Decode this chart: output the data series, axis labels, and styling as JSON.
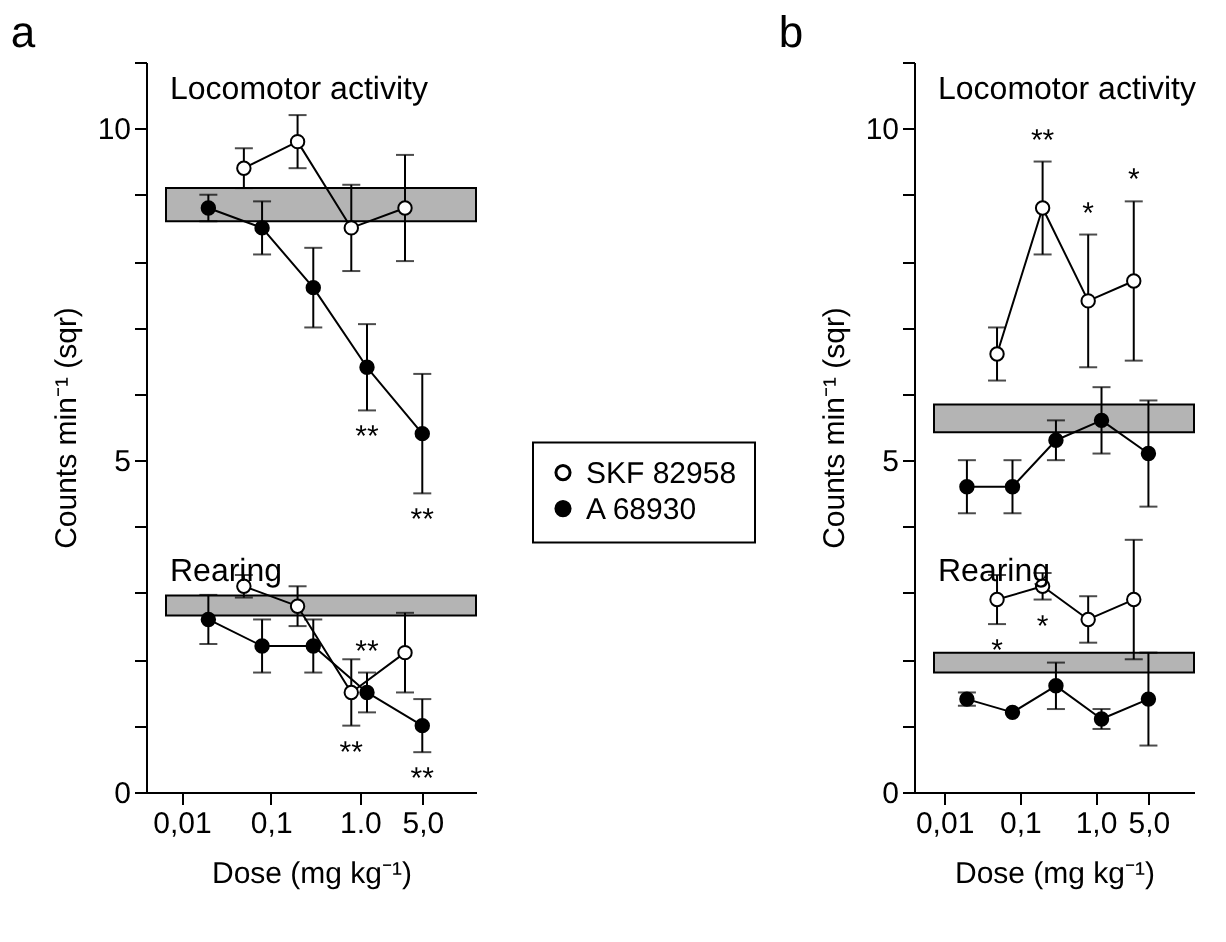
{
  "chart_data": [
    {
      "type": "line",
      "title": "a",
      "xlabel": "Dose (mg kg⁻¹)",
      "ylabel": "Counts min⁻¹ (sqr)",
      "log": "x",
      "grid": false,
      "legend": "right",
      "marker": "circle",
      "line_style": "solid",
      "xlim": [
        0.004,
        20
      ],
      "xticks": [
        {
          "value": 0.01,
          "label": "0,01"
        },
        {
          "value": 0.1,
          "label": "0,1"
        },
        {
          "value": 1,
          "label": "1.0"
        },
        {
          "value": 5,
          "label": "5,0"
        }
      ],
      "ylim": [
        0,
        11
      ],
      "yticks": [
        0,
        {
          "value": 1,
          "label": null
        },
        {
          "value": 2,
          "label": null
        },
        {
          "value": 3,
          "label": null
        },
        {
          "value": 4,
          "label": null
        },
        5,
        {
          "value": 6,
          "label": null
        },
        {
          "value": 7,
          "label": null
        },
        {
          "value": 8,
          "label": null
        },
        {
          "value": 9,
          "label": null
        },
        10,
        {
          "value": 11,
          "label": null
        }
      ],
      "series": [
        {
          "name": "SKF 82958",
          "color": "#ffffff",
          "x": [
            0.05,
            0.2,
            0.8,
            3.2
          ],
          "values": [
            9.4,
            9.8,
            8.5,
            8.8
          ],
          "errors": [
            0.3,
            0.4,
            0.65,
            0.8
          ]
        },
        {
          "name": "A 68930",
          "color": "#000000",
          "x": [
            0.02,
            0.08,
            0.3,
            1.2,
            5
          ],
          "values": [
            8.8,
            8.5,
            7.6,
            6.4,
            5.4
          ],
          "errors": [
            0.2,
            0.4,
            0.6,
            0.65,
            0.9
          ]
        },
        {
          "color": "#ffffff",
          "x": [
            0.05,
            0.2,
            0.8,
            3.2
          ],
          "values": [
            3.1,
            2.8,
            1.5,
            2.1
          ],
          "errors": [
            0.17,
            0.3,
            0.5,
            0.6
          ]
        },
        {
          "color": "#000000",
          "x": [
            0.02,
            0.08,
            0.3,
            1.2,
            5
          ],
          "values": [
            2.6,
            2.2,
            2.2,
            1.5,
            1.0
          ],
          "errors": [
            0.37,
            0.4,
            0.4,
            0.3,
            0.4
          ]
        }
      ],
      "bands": [
        {
          "axis": "y",
          "from": 8.6,
          "to": 9.1,
          "color": "#b4b4b4"
        },
        {
          "axis": "y",
          "from": 2.66,
          "to": 2.96,
          "color": "#b4b4b4"
        }
      ],
      "annotations": [
        "Locomotor activity",
        "Rearing",
        {
          "text": "**",
          "x": 1.2,
          "y": 5.75
        },
        {
          "text": "**",
          "x": 5,
          "y": 4.5
        },
        {
          "text": "**",
          "x": 1.2,
          "y": 1.8
        },
        {
          "text": "**",
          "x": 0.8,
          "y": 1.0
        },
        {
          "text": "**",
          "x": 5,
          "y": 0.6
        }
      ]
    },
    {
      "type": "line",
      "title": "b",
      "xlabel": "Dose (mg kg⁻¹)",
      "ylabel": "Counts min⁻¹ (sqr)",
      "log": "x",
      "grid": false,
      "marker": "circle",
      "line_style": "solid",
      "xlim": [
        0.004,
        20
      ],
      "xticks": [
        {
          "value": 0.01,
          "label": "0,01"
        },
        {
          "value": 0.1,
          "label": "0,1"
        },
        {
          "value": 1,
          "label": "1,0"
        },
        {
          "value": 5,
          "label": "5,0"
        }
      ],
      "ylim": [
        0,
        11
      ],
      "yticks": [
        0,
        {
          "value": 1,
          "label": null
        },
        {
          "value": 2,
          "label": null
        },
        {
          "value": 3,
          "label": null
        },
        {
          "value": 4,
          "label": null
        },
        5,
        {
          "value": 6,
          "label": null
        },
        {
          "value": 7,
          "label": null
        },
        {
          "value": 8,
          "label": null
        },
        {
          "value": 9,
          "label": null
        },
        10,
        {
          "value": 11,
          "label": null
        }
      ],
      "series": [
        {
          "color": "#ffffff",
          "x": [
            0.05,
            0.2,
            0.8,
            3.2
          ],
          "values": [
            6.6,
            8.8,
            7.4,
            7.7
          ],
          "errors": [
            0.4,
            0.7,
            1.0,
            1.2
          ]
        },
        {
          "color": "#000000",
          "x": [
            0.02,
            0.08,
            0.3,
            1.2,
            5
          ],
          "values": [
            4.6,
            4.6,
            5.3,
            5.6,
            5.1
          ],
          "errors": [
            0.4,
            0.4,
            0.3,
            0.5,
            0.8
          ]
        },
        {
          "color": "#ffffff",
          "x": [
            0.05,
            0.2,
            0.8,
            3.2
          ],
          "values": [
            2.9,
            3.1,
            2.6,
            2.9
          ],
          "errors": [
            0.37,
            0.2,
            0.35,
            0.9
          ]
        },
        {
          "color": "#000000",
          "x": [
            0.02,
            0.08,
            0.3,
            1.2,
            5
          ],
          "values": [
            1.4,
            1.2,
            1.6,
            1.1,
            1.4
          ],
          "errors": [
            0.1,
            null,
            0.35,
            0.15,
            0.7
          ]
        }
      ],
      "bands": [
        {
          "axis": "y",
          "from": 5.42,
          "to": 5.84,
          "color": "#b4b4b4"
        },
        {
          "axis": "y",
          "from": 1.8,
          "to": 2.1,
          "color": "#b4b4b4"
        }
      ],
      "annotations": [
        "Locomotor activity",
        "Rearing",
        {
          "text": "**",
          "x": 0.2,
          "y": 9.5
        },
        {
          "text": "*",
          "x": 0.8,
          "y": 8.4
        },
        {
          "text": "*",
          "x": 3.2,
          "y": 8.9
        },
        {
          "text": "*",
          "x": 0.05,
          "y": 2.53
        },
        {
          "text": "*",
          "x": 0.2,
          "y": 2.9
        }
      ]
    }
  ]
}
